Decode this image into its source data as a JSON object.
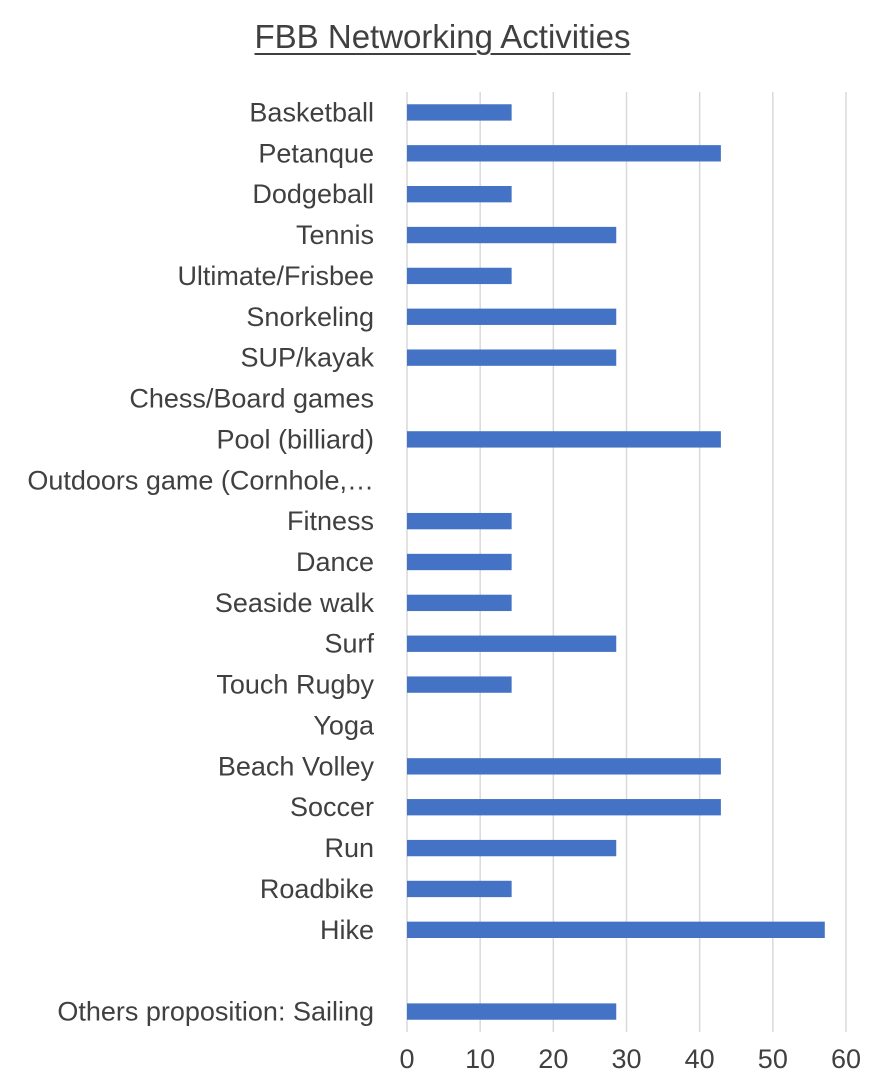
{
  "chart_data": {
    "type": "bar",
    "orientation": "horizontal",
    "title": "FBB Networking Activities",
    "xlabel": "",
    "ylabel": "",
    "xlim": [
      0,
      60
    ],
    "x_ticks": [
      0,
      10,
      20,
      30,
      40,
      50,
      60
    ],
    "grid": "vertical",
    "legend": "none",
    "bar_color": "#4472C4",
    "categories": [
      "Basketball",
      "Petanque",
      "Dodgeball",
      "Tennis",
      "Ultimate/Frisbee",
      "Snorkeling",
      "SUP/kayak",
      "Chess/Board games",
      "Pool (billiard)",
      "Outdoors game (Cornhole,…",
      "Fitness",
      "Dance",
      "Seaside walk",
      "Surf",
      "Touch Rugby",
      "Yoga",
      "Beach Volley",
      "Soccer",
      "Run",
      "Roadbike",
      "Hike",
      "",
      "Others proposition: Sailing"
    ],
    "values": [
      14.3,
      42.9,
      14.3,
      28.6,
      14.3,
      28.6,
      28.6,
      0,
      42.9,
      0,
      14.3,
      14.3,
      14.3,
      28.6,
      14.3,
      0,
      42.9,
      42.9,
      28.6,
      14.3,
      57.1,
      0,
      28.6
    ]
  }
}
